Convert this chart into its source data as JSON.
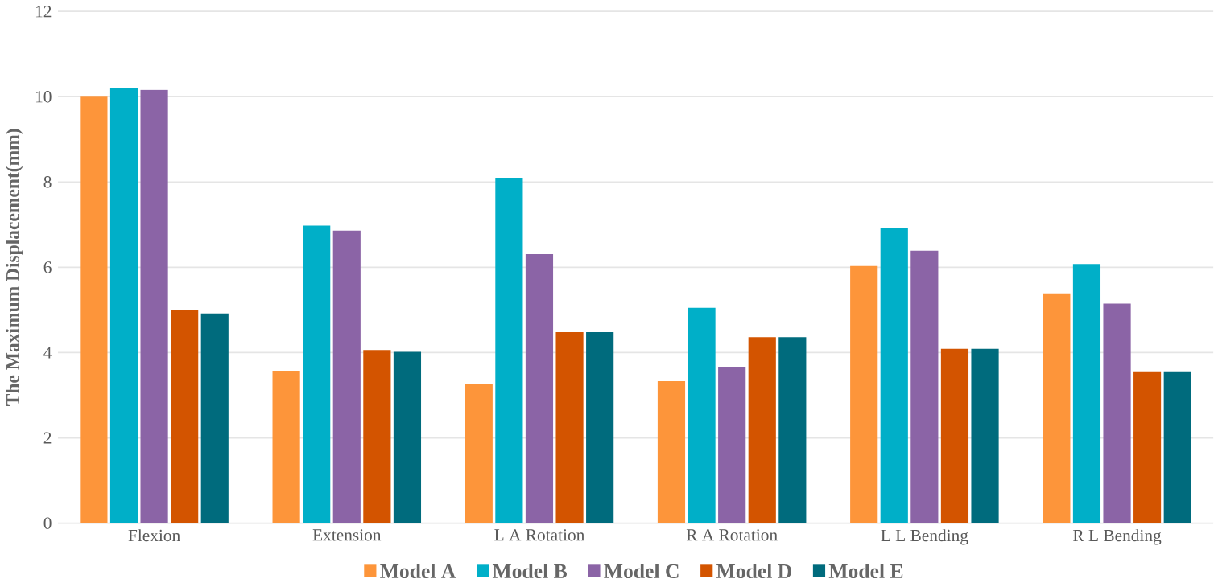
{
  "chart_data": {
    "type": "bar",
    "ylabel": "The Maximum Displacement(mm)",
    "categories": [
      "Flexion",
      "Extension",
      "L A Rotation",
      "R A Rotation",
      "L L Bending",
      "R L Bending"
    ],
    "series": [
      {
        "name": "Model A",
        "color": "#fd953a",
        "values": [
          10.0,
          3.56,
          3.26,
          3.33,
          6.03,
          5.39
        ]
      },
      {
        "name": "Model B",
        "color": "#00afc8",
        "values": [
          10.2,
          6.98,
          8.1,
          5.05,
          6.93,
          6.08
        ]
      },
      {
        "name": "Model C",
        "color": "#8b64a6",
        "values": [
          10.16,
          6.86,
          6.31,
          3.65,
          6.39,
          5.15
        ]
      },
      {
        "name": "Model D",
        "color": "#d35400",
        "values": [
          5.01,
          4.06,
          4.48,
          4.36,
          4.09,
          3.54
        ]
      },
      {
        "name": "Model E",
        "color": "#006b7d",
        "values": [
          4.92,
          4.02,
          4.48,
          4.36,
          4.09,
          3.54
        ]
      }
    ],
    "ylim": [
      0,
      12
    ],
    "yticks": [
      0,
      2,
      4,
      6,
      8,
      10,
      12
    ],
    "grid": "y",
    "legend": "bottom"
  }
}
